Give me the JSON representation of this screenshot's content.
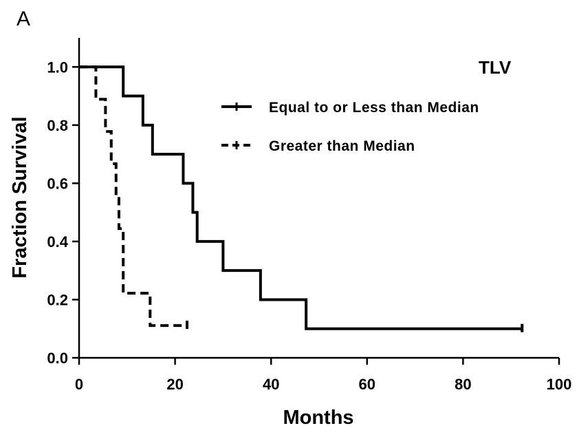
{
  "panel_label": "A",
  "chart_data": {
    "type": "line",
    "subtype": "kaplan-meier step",
    "title": "",
    "xlabel": "Months",
    "ylabel": "Fraction Survival",
    "xlim": [
      0,
      100
    ],
    "ylim": [
      0,
      1.1
    ],
    "x_ticks": [
      0,
      20,
      40,
      60,
      80,
      100
    ],
    "y_ticks": [
      0.0,
      0.2,
      0.4,
      0.6,
      0.8,
      1.0
    ],
    "x_tick_labels": [
      "0",
      "20",
      "40",
      "60",
      "80",
      "100"
    ],
    "y_tick_labels": [
      "0.0",
      "0.2",
      "0.4",
      "0.6",
      "0.8",
      "1.0"
    ],
    "grid": false,
    "legend": {
      "title": "TLV",
      "placement": "top-right"
    },
    "series": [
      {
        "name": "Equal to or Less than Median",
        "style": "solid",
        "color": "#000000",
        "steps": [
          [
            0,
            1.0
          ],
          [
            9.2,
            0.9
          ],
          [
            13.3,
            0.8
          ],
          [
            15.3,
            0.7
          ],
          [
            21.7,
            0.6
          ],
          [
            23.7,
            0.5
          ],
          [
            24.6,
            0.4
          ],
          [
            30.0,
            0.3
          ],
          [
            37.8,
            0.2
          ],
          [
            47.3,
            0.1
          ]
        ],
        "end_x": 92.3,
        "censored": [
          [
            92.3,
            0.1
          ]
        ]
      },
      {
        "name": "Greater than Median",
        "style": "dashed",
        "color": "#000000",
        "steps": [
          [
            0,
            1.0
          ],
          [
            3.5,
            0.889
          ],
          [
            5.5,
            0.778
          ],
          [
            6.7,
            0.667
          ],
          [
            7.7,
            0.556
          ],
          [
            8.3,
            0.444
          ],
          [
            9.2,
            0.333
          ],
          [
            9.2,
            0.222
          ],
          [
            14.8,
            0.111
          ]
        ],
        "end_x": 22.5,
        "censored": [
          [
            22.5,
            0.111
          ]
        ]
      }
    ]
  }
}
